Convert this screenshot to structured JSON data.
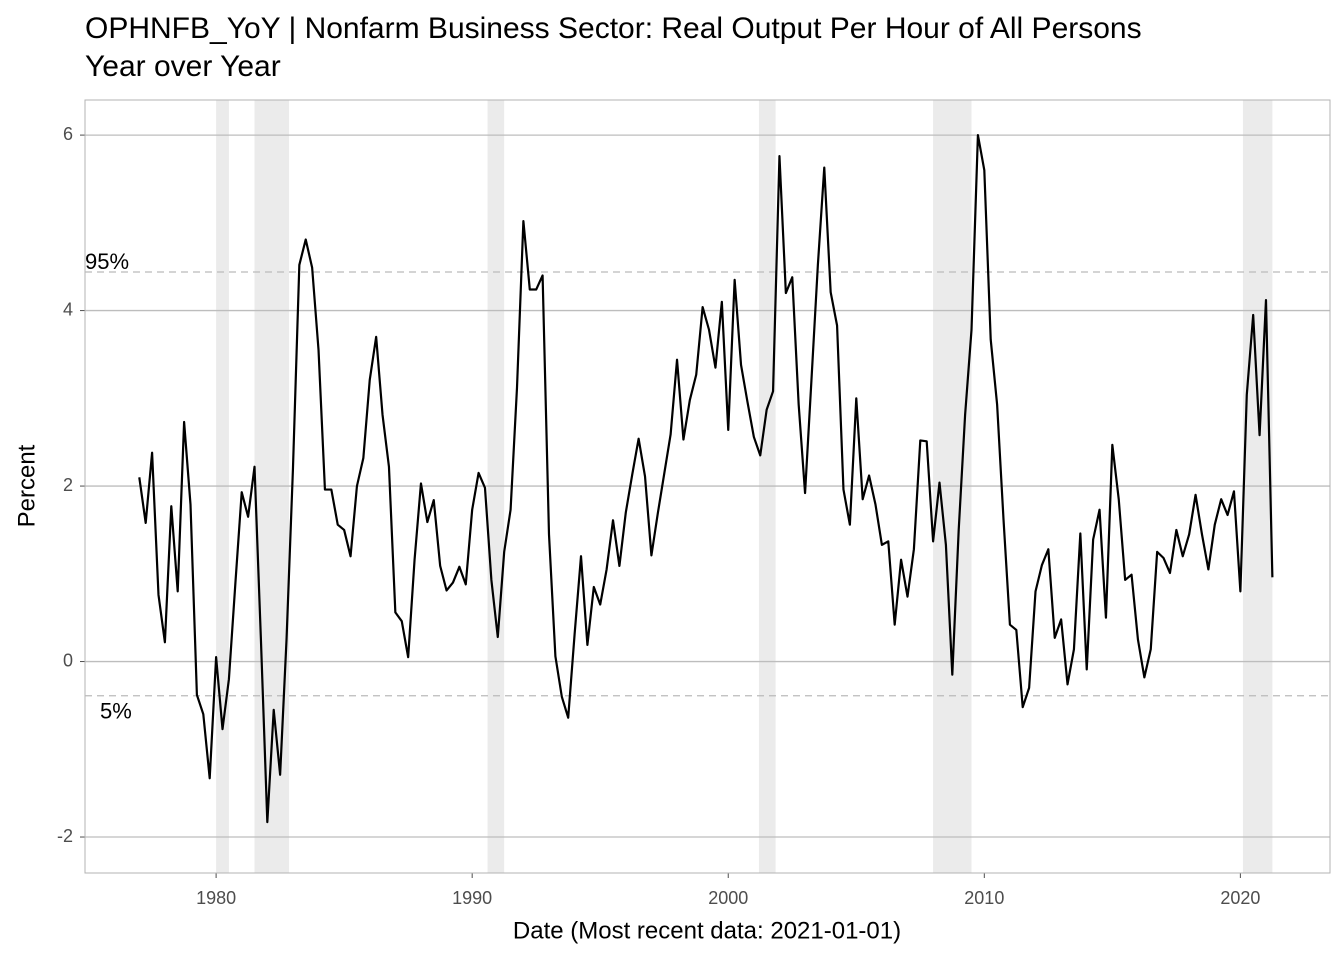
{
  "chart_data": {
    "type": "line",
    "title": "OPHNFB_YoY | Nonfarm Business Sector: Real Output Per Hour of All Persons",
    "subtitle": "Year over Year",
    "x_label": "Date (Most recent data: 2021-01-01)",
    "y_label": "Percent",
    "x": [
      1977,
      1977.25,
      1977.5,
      1977.75,
      1978,
      1978.25,
      1978.5,
      1978.75,
      1979,
      1979.25,
      1979.5,
      1979.75,
      1980,
      1980.25,
      1980.5,
      1980.75,
      1981,
      1981.25,
      1981.5,
      1981.75,
      1982,
      1982.25,
      1982.5,
      1982.75,
      1983,
      1983.25,
      1983.5,
      1983.75,
      1984,
      1984.25,
      1984.5,
      1984.75,
      1985,
      1985.25,
      1985.5,
      1985.75,
      1986,
      1986.25,
      1986.5,
      1986.75,
      1987,
      1987.25,
      1987.5,
      1987.75,
      1988,
      1988.25,
      1988.5,
      1988.75,
      1989,
      1989.25,
      1989.5,
      1989.75,
      1990,
      1990.25,
      1990.5,
      1990.75,
      1991,
      1991.25,
      1991.5,
      1991.75,
      1992,
      1992.25,
      1992.5,
      1992.75,
      1993,
      1993.25,
      1993.5,
      1993.75,
      1994,
      1994.25,
      1994.5,
      1994.75,
      1995,
      1995.25,
      1995.5,
      1995.75,
      1996,
      1996.25,
      1996.5,
      1996.75,
      1997,
      1997.25,
      1997.5,
      1997.75,
      1998,
      1998.25,
      1998.5,
      1998.75,
      1999,
      1999.25,
      1999.5,
      1999.75,
      2000,
      2000.25,
      2000.5,
      2000.75,
      2001,
      2001.25,
      2001.5,
      2001.75,
      2002,
      2002.25,
      2002.5,
      2002.75,
      2003,
      2003.25,
      2003.5,
      2003.75,
      2004,
      2004.25,
      2004.5,
      2004.75,
      2005,
      2005.25,
      2005.5,
      2005.75,
      2006,
      2006.25,
      2006.5,
      2006.75,
      2007,
      2007.25,
      2007.5,
      2007.75,
      2008,
      2008.25,
      2008.5,
      2008.75,
      2009,
      2009.25,
      2009.5,
      2009.75,
      2010,
      2010.25,
      2010.5,
      2010.75,
      2011,
      2011.25,
      2011.5,
      2011.75,
      2012,
      2012.25,
      2012.5,
      2012.75,
      2013,
      2013.25,
      2013.5,
      2013.75,
      2014,
      2014.25,
      2014.5,
      2014.75,
      2015,
      2015.25,
      2015.5,
      2015.75,
      2016,
      2016.25,
      2016.5,
      2016.75,
      2017,
      2017.25,
      2017.5,
      2017.75,
      2018,
      2018.25,
      2018.5,
      2018.75,
      2019,
      2019.25,
      2019.5,
      2019.75,
      2020,
      2020.25,
      2020.5,
      2020.75,
      2021,
      2021.25
    ],
    "series": [
      {
        "color": "#000000",
        "values": [
          2.1,
          1.58,
          2.38,
          0.76,
          0.22,
          1.77,
          0.8,
          2.73,
          1.79,
          -0.38,
          -0.6,
          -1.33,
          0.05,
          -0.77,
          -0.2,
          0.88,
          1.93,
          1.65,
          2.22,
          0.25,
          -1.83,
          -0.55,
          -1.29,
          0.25,
          2.19,
          4.52,
          4.81,
          4.49,
          3.55,
          1.96,
          1.96,
          1.56,
          1.5,
          1.2,
          2.0,
          2.32,
          3.21,
          3.7,
          2.81,
          2.22,
          0.56,
          0.46,
          0.05,
          1.16,
          2.03,
          1.59,
          1.84,
          1.09,
          0.81,
          0.9,
          1.08,
          0.88,
          1.73,
          2.15,
          1.98,
          0.93,
          0.28,
          1.25,
          1.73,
          3.12,
          5.02,
          4.24,
          4.24,
          4.4,
          1.45,
          0.06,
          -0.4,
          -0.64,
          0.31,
          1.2,
          0.19,
          0.85,
          0.65,
          1.05,
          1.61,
          1.09,
          1.7,
          2.13,
          2.54,
          2.11,
          1.21,
          1.69,
          2.14,
          2.59,
          3.44,
          2.53,
          2.98,
          3.27,
          4.04,
          3.78,
          3.35,
          4.1,
          2.64,
          4.35,
          3.38,
          2.96,
          2.56,
          2.35,
          2.87,
          3.08,
          5.76,
          4.2,
          4.38,
          2.93,
          1.92,
          3.21,
          4.52,
          5.63,
          4.21,
          3.83,
          1.96,
          1.56,
          3.0,
          1.85,
          2.12,
          1.79,
          1.33,
          1.37,
          0.42,
          1.16,
          0.74,
          1.28,
          2.52,
          2.51,
          1.37,
          2.04,
          1.33,
          -0.15,
          1.5,
          2.81,
          3.78,
          6.0,
          5.6,
          3.67,
          2.93,
          1.62,
          0.42,
          0.36,
          -0.52,
          -0.3,
          0.8,
          1.1,
          1.28,
          0.27,
          0.48,
          -0.26,
          0.14,
          1.46,
          -0.09,
          1.39,
          1.73,
          0.5,
          2.47,
          1.85,
          0.93,
          0.99,
          0.25,
          -0.18,
          0.14,
          1.25,
          1.18,
          1.01,
          1.5,
          1.2,
          1.45,
          1.9,
          1.45,
          1.05,
          1.56,
          1.85,
          1.67,
          1.94,
          0.8,
          3.04,
          3.95,
          2.58,
          4.12,
          0.96
        ]
      }
    ],
    "reference_lines": [
      {
        "label": "95%",
        "value": 4.44
      },
      {
        "label": "5%",
        "value": -0.39
      }
    ],
    "shaded_periods": [
      [
        1980.0,
        1980.5
      ],
      [
        1981.5,
        1982.85
      ],
      [
        1990.6,
        1991.25
      ],
      [
        2001.2,
        2001.85
      ],
      [
        2008.0,
        2009.5
      ],
      [
        2020.1,
        2021.25
      ]
    ],
    "shade_color": "#ebebeb",
    "xlim": [
      1974.88,
      2023.5
    ],
    "ylim": [
      -2.41,
      6.4
    ],
    "xticks": [
      1980,
      1990,
      2000,
      2010,
      2020
    ],
    "yticks": [
      -2,
      0,
      2,
      4,
      6
    ],
    "grid": true
  }
}
